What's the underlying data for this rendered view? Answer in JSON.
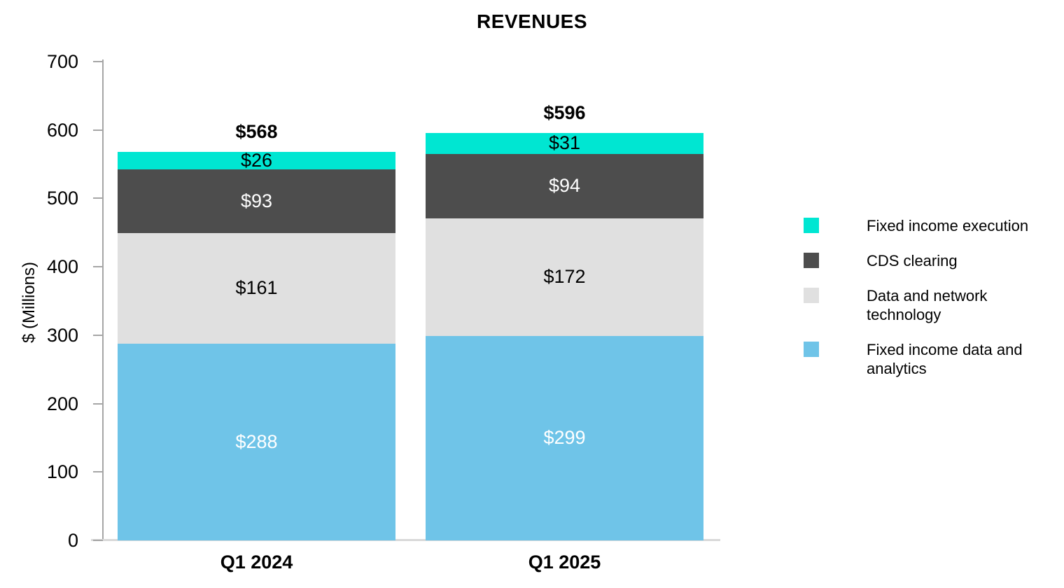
{
  "page": {
    "background": "#FFFFFF"
  },
  "chart_data": {
    "type": "bar",
    "stacked": true,
    "title": "REVENUES",
    "xlabel": "",
    "ylabel": "$ (Millions)",
    "categories": [
      "Q1 2024",
      "Q1 2025"
    ],
    "bar_totals": [
      "$568",
      "$596"
    ],
    "ylim": [
      0,
      700
    ],
    "yticks": [
      0,
      100,
      200,
      300,
      400,
      500,
      600,
      700
    ],
    "grid": false,
    "legend_position": "right-middle",
    "stack_order": "bottom-to-top",
    "series": [
      {
        "name": "Fixed income data and analytics",
        "color": "#6FC4E8",
        "values": [
          288,
          299
        ],
        "labels": [
          "$288",
          "$299"
        ],
        "label_color": "#FFFFFF"
      },
      {
        "name": "Data and network technology",
        "color": "#E0E0E0",
        "values": [
          161,
          172
        ],
        "labels": [
          "$161",
          "$172"
        ],
        "label_color": "#000000"
      },
      {
        "name": "CDS clearing",
        "color": "#4D4D4D",
        "values": [
          93,
          94
        ],
        "labels": [
          "$93",
          "$94"
        ],
        "label_color": "#FFFFFF"
      },
      {
        "name": "Fixed income execution",
        "color": "#00E6D2",
        "values": [
          26,
          31
        ],
        "labels": [
          "$26",
          "$31"
        ],
        "label_color": "#000000"
      }
    ],
    "legend": [
      {
        "label": "Fixed income execution",
        "color": "#00E6D2"
      },
      {
        "label": "CDS clearing",
        "color": "#4D4D4D"
      },
      {
        "label": "Data and network technology",
        "color": "#E0E0E0"
      },
      {
        "label": "Fixed income data and analytics",
        "color": "#6FC4E8"
      }
    ],
    "axis_colors": {
      "y_axis_line": "#A6A6A6",
      "tick_mark": "#A6A6A6",
      "baseline": "#D9D9D9",
      "tick_label": "#000000"
    }
  }
}
